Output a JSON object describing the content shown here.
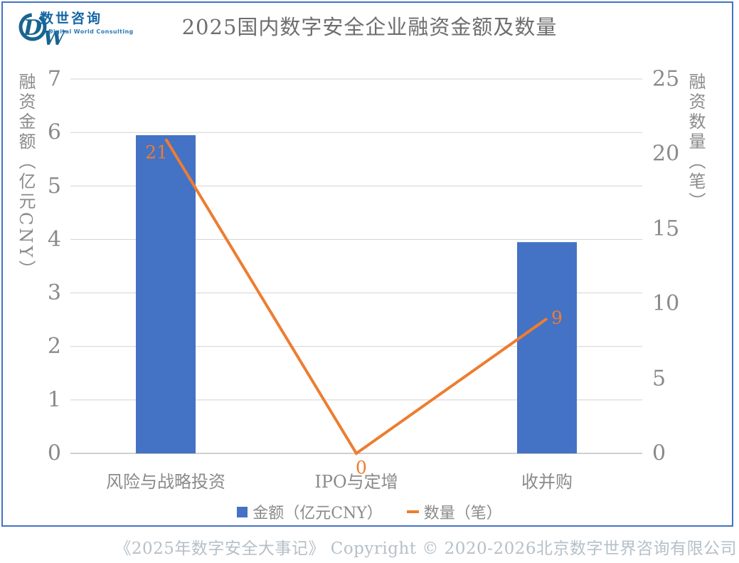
{
  "logo": {
    "name_cn": "数世咨询",
    "name_en": "Digital World Consulting",
    "monogram_d": "D",
    "monogram_w": "W"
  },
  "chart_data": {
    "type": "combo-bar-line",
    "title": "2025国内数字安全企业融资金额及数量",
    "categories": [
      "风险与战略投资",
      "IPO与定增",
      "收并购"
    ],
    "series": [
      {
        "name": "金额（亿元CNY）",
        "type": "bar",
        "axis": "left",
        "values": [
          5.95,
          0,
          3.95
        ]
      },
      {
        "name": "数量（笔）",
        "type": "line",
        "axis": "right",
        "values": [
          21,
          0,
          9
        ],
        "point_labels": [
          "21",
          "0",
          "9"
        ]
      }
    ],
    "left_axis": {
      "title": "融资金额（亿元CNY）",
      "min": 0,
      "max": 7,
      "ticks": [
        0,
        1,
        2,
        3,
        4,
        5,
        6,
        7
      ]
    },
    "right_axis": {
      "title": "融资数量（笔）",
      "min": 0,
      "max": 25,
      "ticks": [
        0,
        5,
        10,
        15,
        20,
        25
      ]
    },
    "grid": true,
    "legend_position": "bottom"
  },
  "footer": {
    "text": "《2025年数字安全大事记》  Copyright © 2020-2026北京数字世界咨询有限公司"
  },
  "colors": {
    "bar": "#4472C4",
    "line": "#ED7D31",
    "frame": "#4472C4",
    "grid": "#D2D2D2",
    "axis": "#C0C0C0",
    "tick_text": "#8a8a8a",
    "title_text": "#6e6e6e",
    "footer_text": "#b6c0c8",
    "logo_blue": "#19648F"
  }
}
